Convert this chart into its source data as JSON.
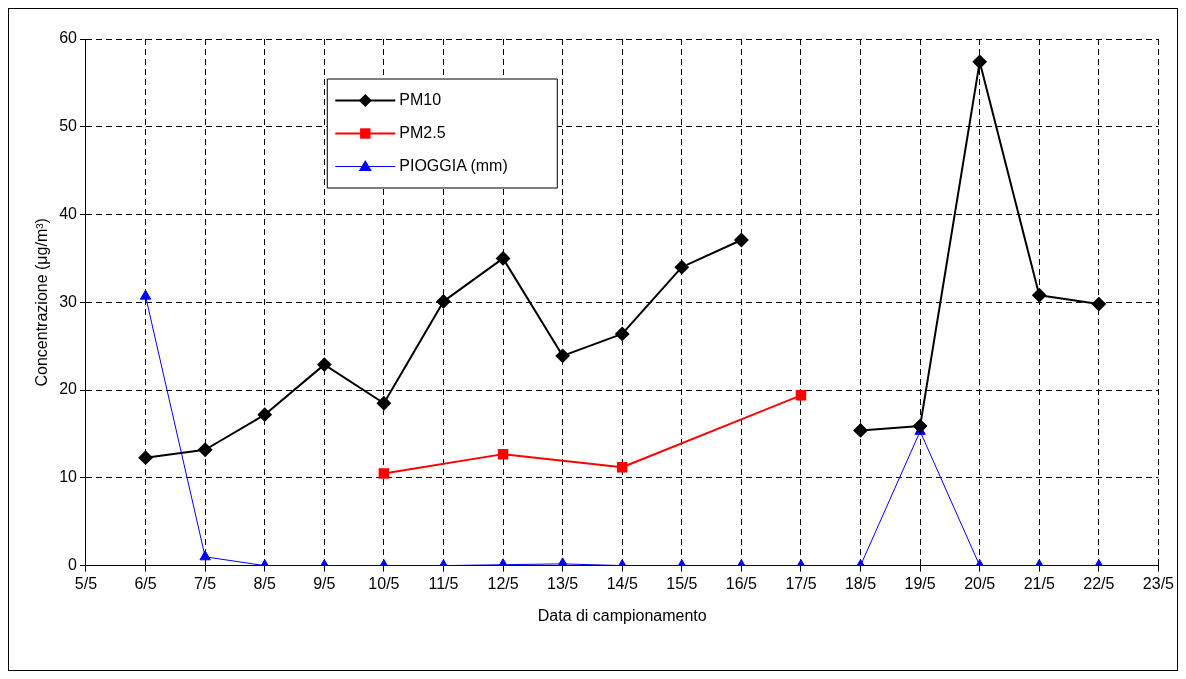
{
  "chart_data": {
    "type": "line",
    "xlabel": "Data di campionamento",
    "ylabel": "Concentrazione (μg/m³)",
    "categories": [
      "5/5",
      "6/5",
      "7/5",
      "8/5",
      "9/5",
      "10/5",
      "11/5",
      "12/5",
      "13/5",
      "14/5",
      "15/5",
      "16/5",
      "17/5",
      "18/5",
      "19/5",
      "20/5",
      "21/5",
      "22/5",
      "23/5"
    ],
    "ylim": [
      0,
      60
    ],
    "yticks": [
      0,
      10,
      20,
      30,
      40,
      50,
      60
    ],
    "grid": true,
    "legend": "top left",
    "line_style": "solid",
    "series": [
      {
        "name": "PM10",
        "color": "#000000",
        "marker": "diamond",
        "values": [
          null,
          12.3,
          13.2,
          17.2,
          22.9,
          18.5,
          30.1,
          35.0,
          23.9,
          26.4,
          34.0,
          37.1,
          null,
          15.4,
          15.9,
          57.4,
          30.8,
          29.8,
          null
        ]
      },
      {
        "name": "PM2.5",
        "color": "#ff0000",
        "marker": "square",
        "x": [
          "10/5",
          "12/5",
          "14/5",
          "17/5"
        ],
        "values": [
          10.5,
          12.7,
          11.2,
          19.4
        ]
      },
      {
        "name": "PIOGGIA (mm)",
        "color": "#0000ff",
        "marker": "triangle",
        "values": [
          null,
          30.7,
          1.0,
          0,
          0,
          0,
          0,
          0.1,
          0.2,
          0,
          0,
          0,
          0,
          0,
          15.3,
          0,
          0,
          0,
          null
        ]
      }
    ]
  }
}
